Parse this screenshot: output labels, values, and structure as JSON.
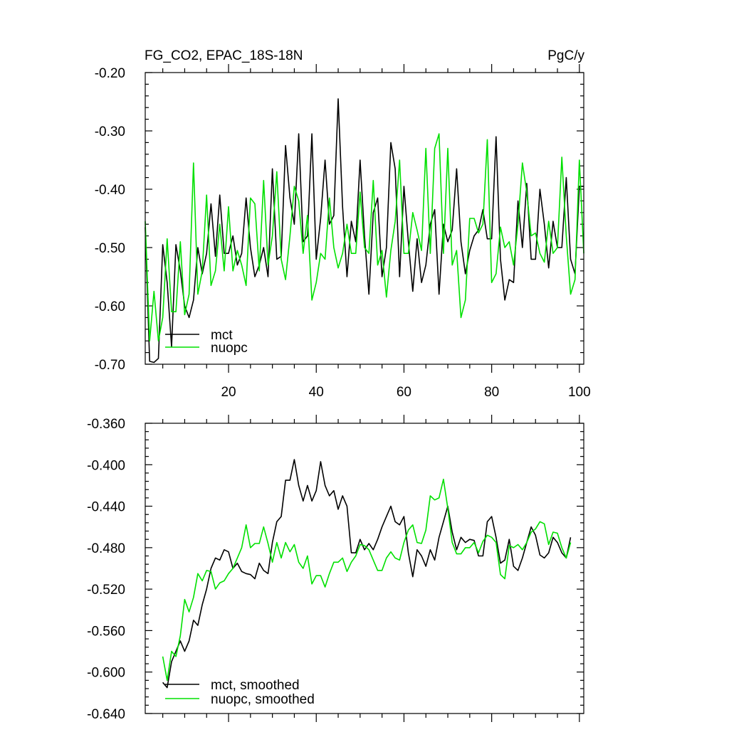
{
  "chart_data": [
    {
      "type": "line",
      "title": "FG_CO2, EPAC_18S-18N",
      "units": "PgC/y",
      "xlim": [
        1,
        101
      ],
      "xticks": [
        20,
        40,
        60,
        80,
        100
      ],
      "ylim": [
        -0.7,
        -0.2
      ],
      "yticks": [
        "-0.70",
        "-0.60",
        "-0.50",
        "-0.40",
        "-0.30",
        "-0.20"
      ],
      "legend_position": "bottom-left",
      "x": [
        1,
        2,
        3,
        4,
        5,
        6,
        7,
        8,
        9,
        10,
        11,
        12,
        13,
        14,
        15,
        16,
        17,
        18,
        19,
        20,
        21,
        22,
        23,
        24,
        25,
        26,
        27,
        28,
        29,
        30,
        31,
        32,
        33,
        34,
        35,
        36,
        37,
        38,
        39,
        40,
        41,
        42,
        43,
        44,
        45,
        46,
        47,
        48,
        49,
        50,
        51,
        52,
        53,
        54,
        55,
        56,
        57,
        58,
        59,
        60,
        61,
        62,
        63,
        64,
        65,
        66,
        67,
        68,
        69,
        70,
        71,
        72,
        73,
        74,
        75,
        76,
        77,
        78,
        79,
        80,
        81,
        82,
        83,
        84,
        85,
        86,
        87,
        88,
        89,
        90,
        91,
        92,
        93,
        94,
        95,
        96,
        97,
        98,
        99,
        100,
        101
      ],
      "series": [
        {
          "name": "mct",
          "color": "#000000",
          "values": [
            -0.465,
            -0.695,
            -0.697,
            -0.69,
            -0.495,
            -0.56,
            -0.67,
            -0.495,
            -0.54,
            -0.6,
            -0.62,
            -0.59,
            -0.5,
            -0.545,
            -0.51,
            -0.425,
            -0.515,
            -0.41,
            -0.51,
            -0.51,
            -0.48,
            -0.53,
            -0.51,
            -0.415,
            -0.5,
            -0.55,
            -0.53,
            -0.5,
            -0.55,
            -0.365,
            -0.52,
            -0.515,
            -0.325,
            -0.415,
            -0.46,
            -0.305,
            -0.49,
            -0.48,
            -0.305,
            -0.52,
            -0.45,
            -0.35,
            -0.46,
            -0.445,
            -0.245,
            -0.43,
            -0.55,
            -0.455,
            -0.49,
            -0.35,
            -0.48,
            -0.58,
            -0.44,
            -0.415,
            -0.55,
            -0.5,
            -0.32,
            -0.365,
            -0.55,
            -0.395,
            -0.49,
            -0.575,
            -0.485,
            -0.56,
            -0.53,
            -0.46,
            -0.435,
            -0.58,
            -0.46,
            -0.49,
            -0.47,
            -0.365,
            -0.49,
            -0.545,
            -0.505,
            -0.48,
            -0.47,
            -0.435,
            -0.485,
            -0.485,
            -0.31,
            -0.52,
            -0.59,
            -0.555,
            -0.56,
            -0.42,
            -0.5,
            -0.39,
            -0.52,
            -0.52,
            -0.4,
            -0.46,
            -0.535,
            -0.455,
            -0.5,
            -0.5,
            -0.38,
            -0.52,
            -0.545,
            -0.395,
            -0.395
          ]
        },
        {
          "name": "nuopc",
          "color": "#00e000",
          "values": [
            -0.455,
            -0.66,
            -0.575,
            -0.66,
            -0.62,
            -0.485,
            -0.61,
            -0.61,
            -0.49,
            -0.615,
            -0.58,
            -0.355,
            -0.58,
            -0.54,
            -0.41,
            -0.565,
            -0.54,
            -0.46,
            -0.54,
            -0.43,
            -0.54,
            -0.505,
            -0.53,
            -0.565,
            -0.415,
            -0.425,
            -0.54,
            -0.385,
            -0.53,
            -0.48,
            -0.37,
            -0.52,
            -0.555,
            -0.48,
            -0.395,
            -0.42,
            -0.51,
            -0.445,
            -0.59,
            -0.56,
            -0.51,
            -0.52,
            -0.415,
            -0.5,
            -0.535,
            -0.51,
            -0.46,
            -0.51,
            -0.51,
            -0.405,
            -0.5,
            -0.51,
            -0.385,
            -0.53,
            -0.505,
            -0.585,
            -0.505,
            -0.455,
            -0.35,
            -0.51,
            -0.51,
            -0.44,
            -0.47,
            -0.505,
            -0.33,
            -0.51,
            -0.33,
            -0.305,
            -0.51,
            -0.33,
            -0.53,
            -0.505,
            -0.62,
            -0.59,
            -0.45,
            -0.45,
            -0.475,
            -0.46,
            -0.315,
            -0.56,
            -0.545,
            -0.465,
            -0.5,
            -0.49,
            -0.53,
            -0.46,
            -0.355,
            -0.405,
            -0.48,
            -0.475,
            -0.51,
            -0.525,
            -0.455,
            -0.51,
            -0.5,
            -0.345,
            -0.48,
            -0.58,
            -0.555,
            -0.35,
            -0.51
          ]
        }
      ]
    },
    {
      "type": "line",
      "title": "",
      "xlim": [
        1,
        101
      ],
      "xticks": [
        20,
        40,
        60,
        80,
        100
      ],
      "ylim": [
        -0.64,
        -0.36
      ],
      "yticks": [
        "-0.640",
        "-0.600",
        "-0.560",
        "-0.520",
        "-0.480",
        "-0.440",
        "-0.400",
        "-0.360"
      ],
      "legend_position": "bottom-left",
      "x": [
        5,
        6,
        7,
        8,
        9,
        10,
        11,
        12,
        13,
        14,
        15,
        16,
        17,
        18,
        19,
        20,
        21,
        22,
        23,
        24,
        25,
        26,
        27,
        28,
        29,
        30,
        31,
        32,
        33,
        34,
        35,
        36,
        37,
        38,
        39,
        40,
        41,
        42,
        43,
        44,
        45,
        46,
        47,
        48,
        49,
        50,
        51,
        52,
        53,
        54,
        55,
        56,
        57,
        58,
        59,
        60,
        61,
        62,
        63,
        64,
        65,
        66,
        67,
        68,
        69,
        70,
        71,
        72,
        73,
        74,
        75,
        76,
        77,
        78,
        79,
        80,
        81,
        82,
        83,
        84,
        85,
        86,
        87,
        88,
        89,
        90,
        91,
        92,
        93,
        94,
        95,
        96,
        97,
        98
      ],
      "series": [
        {
          "name": "mct, smoothed",
          "color": "#000000",
          "values": [
            -0.61,
            -0.615,
            -0.59,
            -0.58,
            -0.57,
            -0.58,
            -0.57,
            -0.55,
            -0.555,
            -0.535,
            -0.52,
            -0.5,
            -0.49,
            -0.492,
            -0.482,
            -0.484,
            -0.5,
            -0.495,
            -0.503,
            -0.505,
            -0.506,
            -0.51,
            -0.495,
            -0.502,
            -0.505,
            -0.475,
            -0.455,
            -0.45,
            -0.415,
            -0.415,
            -0.395,
            -0.42,
            -0.435,
            -0.42,
            -0.435,
            -0.425,
            -0.397,
            -0.42,
            -0.43,
            -0.425,
            -0.443,
            -0.43,
            -0.44,
            -0.485,
            -0.485,
            -0.472,
            -0.482,
            -0.476,
            -0.482,
            -0.472,
            -0.46,
            -0.45,
            -0.44,
            -0.455,
            -0.458,
            -0.45,
            -0.485,
            -0.508,
            -0.482,
            -0.488,
            -0.498,
            -0.482,
            -0.492,
            -0.47,
            -0.455,
            -0.44,
            -0.465,
            -0.482,
            -0.47,
            -0.475,
            -0.472,
            -0.473,
            -0.488,
            -0.488,
            -0.455,
            -0.45,
            -0.47,
            -0.495,
            -0.492,
            -0.472,
            -0.498,
            -0.502,
            -0.49,
            -0.475,
            -0.46,
            -0.468,
            -0.487,
            -0.49,
            -0.485,
            -0.47,
            -0.475,
            -0.485,
            -0.49,
            -0.47
          ]
        },
        {
          "name": "nuopc, smoothed",
          "color": "#00e000",
          "values": [
            -0.585,
            -0.608,
            -0.58,
            -0.585,
            -0.565,
            -0.53,
            -0.542,
            -0.528,
            -0.505,
            -0.512,
            -0.502,
            -0.503,
            -0.52,
            -0.514,
            -0.512,
            -0.505,
            -0.5,
            -0.49,
            -0.48,
            -0.458,
            -0.48,
            -0.476,
            -0.476,
            -0.46,
            -0.476,
            -0.494,
            -0.475,
            -0.49,
            -0.475,
            -0.484,
            -0.477,
            -0.494,
            -0.5,
            -0.488,
            -0.515,
            -0.507,
            -0.507,
            -0.518,
            -0.505,
            -0.494,
            -0.494,
            -0.49,
            -0.503,
            -0.494,
            -0.488,
            -0.477,
            -0.478,
            -0.482,
            -0.492,
            -0.502,
            -0.502,
            -0.49,
            -0.484,
            -0.49,
            -0.492,
            -0.475,
            -0.463,
            -0.458,
            -0.475,
            -0.476,
            -0.463,
            -0.43,
            -0.434,
            -0.432,
            -0.414,
            -0.442,
            -0.475,
            -0.486,
            -0.486,
            -0.48,
            -0.48,
            -0.475,
            -0.485,
            -0.474,
            -0.468,
            -0.47,
            -0.475,
            -0.506,
            -0.51,
            -0.478,
            -0.48,
            -0.477,
            -0.482,
            -0.475,
            -0.465,
            -0.462,
            -0.455,
            -0.457,
            -0.477,
            -0.465,
            -0.466,
            -0.48,
            -0.49,
            -0.475
          ]
        }
      ]
    }
  ]
}
